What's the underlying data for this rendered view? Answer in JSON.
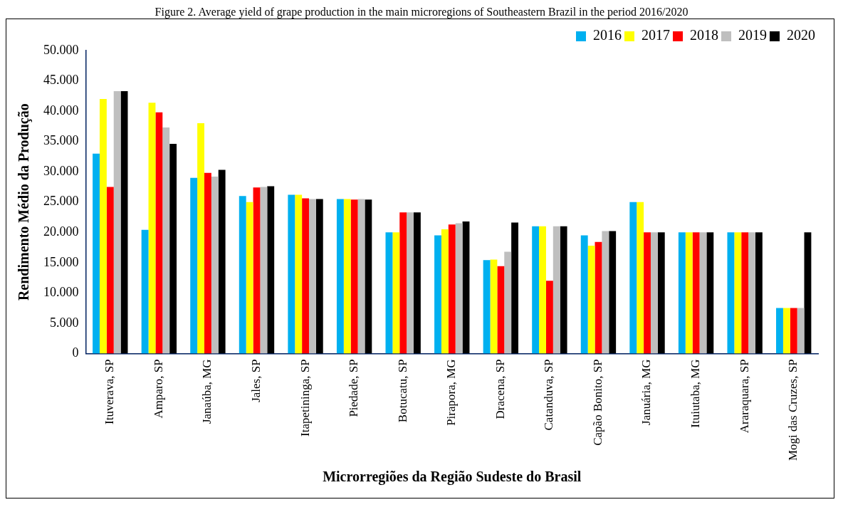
{
  "chart_data": {
    "type": "bar",
    "title": "Figure 2. Average yield of grape production in the main microregions of Southeastern Brazil in the period 2016/2020",
    "xlabel": "Microrregiões da Região Sudeste do Brasil",
    "ylabel": "Rendimento Médio da Produção",
    "categories": [
      "Ituverava, SP",
      "Amparo, SP",
      "Janaúba, MG",
      "Jales, SP",
      "Itapetininga, SP",
      "Piedade, SP",
      "Botucatu, SP",
      "Pirapora, MG",
      "Dracena, SP",
      "Catanduva, SP",
      "Capão Bonito, SP",
      "Januária, MG",
      "Ituiutaba, MG",
      "Araraquara, SP",
      "Mogi das Cruzes, SP"
    ],
    "series": [
      {
        "name": "2016",
        "color": "#00b0f0",
        "values": [
          33000,
          20400,
          29000,
          26000,
          26200,
          25500,
          20000,
          19500,
          15400,
          21000,
          19500,
          25000,
          20000,
          20000,
          7500
        ]
      },
      {
        "name": "2017",
        "color": "#ffff00",
        "values": [
          42000,
          41400,
          38000,
          25000,
          26200,
          25500,
          20000,
          20500,
          15500,
          21000,
          17800,
          25000,
          20000,
          20000,
          7500
        ]
      },
      {
        "name": "2018",
        "color": "#ff0000",
        "values": [
          27500,
          39800,
          29800,
          27400,
          25600,
          25400,
          23300,
          21300,
          14400,
          12000,
          18400,
          20000,
          20000,
          20000,
          7500
        ]
      },
      {
        "name": "2019",
        "color": "#bfbfbf",
        "values": [
          43300,
          37300,
          29200,
          27500,
          25500,
          25500,
          23300,
          21500,
          16800,
          21000,
          20200,
          20000,
          20000,
          20000,
          7500
        ]
      },
      {
        "name": "2020",
        "color": "#000000",
        "values": [
          43300,
          34600,
          30300,
          27600,
          25500,
          25400,
          23300,
          21800,
          21600,
          21000,
          20200,
          20000,
          20000,
          20000,
          20000
        ]
      }
    ],
    "ylim": [
      0,
      50000
    ],
    "yticks": [
      0,
      {
        "value": 5000,
        "label": "5.000"
      },
      {
        "value": 10000,
        "label": "10.000"
      },
      {
        "value": 15000,
        "label": "15.000"
      },
      {
        "value": 20000,
        "label": "20.000"
      },
      {
        "value": 25000,
        "label": "25.000"
      },
      {
        "value": 30000,
        "label": "30.000"
      },
      {
        "value": 35000,
        "label": "35.000"
      },
      {
        "value": 40000,
        "label": "40.000"
      },
      {
        "value": 45000,
        "label": "45.000"
      },
      {
        "value": 50000,
        "label": "50.000"
      }
    ],
    "grid": false,
    "legend": "top right"
  }
}
